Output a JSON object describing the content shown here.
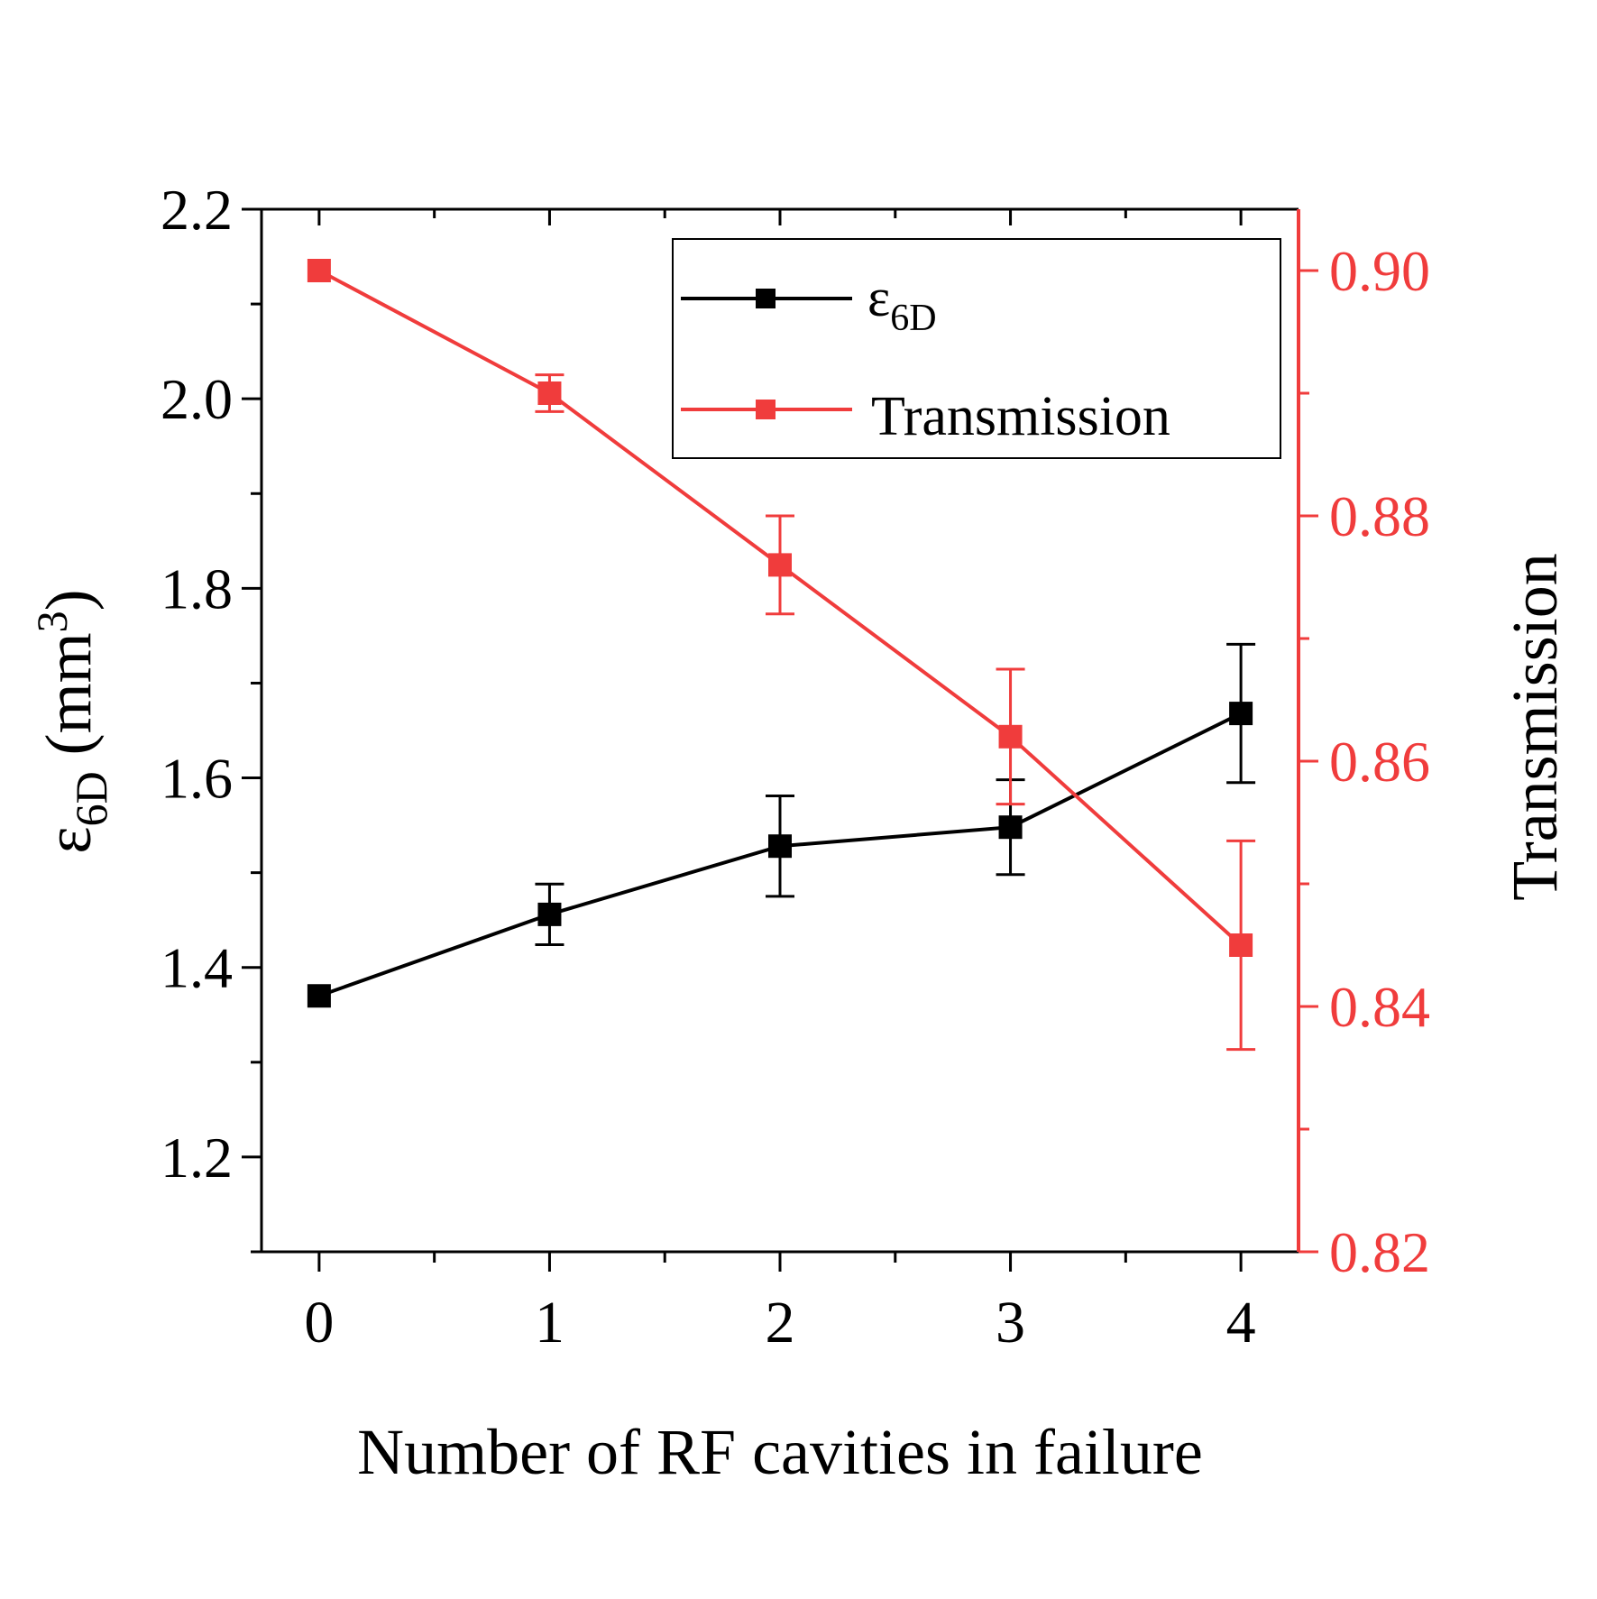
{
  "chart_data": {
    "type": "line",
    "title": "",
    "xlabel": "Number of RF cavities in failure",
    "x": [
      0,
      1,
      2,
      3,
      4
    ],
    "xticks": [
      "0",
      "1",
      "2",
      "3",
      "4"
    ],
    "xlim": [
      -0.25,
      4.25
    ],
    "y_left": {
      "label_symbol": "ε",
      "label_subscript": "6D",
      "label_unit_open": " (mm",
      "label_unit_sup": "3",
      "label_unit_close": ")",
      "lim": [
        1.1,
        2.2
      ],
      "major_ticks": [
        1.2,
        1.4,
        1.6,
        1.8,
        2.0,
        2.2
      ],
      "tick_labels": [
        "1.2",
        "1.4",
        "1.6",
        "1.8",
        "2.0",
        "2.2"
      ],
      "minor_ticks": [
        1.1,
        1.3,
        1.5,
        1.7,
        1.9,
        2.1
      ],
      "color": "#000000"
    },
    "y_right": {
      "label": "Transmission",
      "lim": [
        0.82,
        0.905
      ],
      "major_ticks": [
        0.82,
        0.84,
        0.86,
        0.88,
        0.9
      ],
      "tick_labels": [
        "0.82",
        "0.84",
        "0.86",
        "0.88",
        "0.90"
      ],
      "minor_ticks": [
        0.83,
        0.85,
        0.87,
        0.89
      ],
      "color": "#f03c3c"
    },
    "series": [
      {
        "name_symbol": "ε",
        "name_subscript": "6D",
        "axis": "left",
        "color": "#000000",
        "values": [
          1.37,
          1.456,
          1.528,
          1.548,
          1.668
        ],
        "errors": [
          0.0,
          0.032,
          0.053,
          0.05,
          0.073
        ]
      },
      {
        "name": "Transmission",
        "axis": "right",
        "color": "#f03c3c",
        "values": [
          0.9,
          0.89,
          0.876,
          0.862,
          0.845
        ],
        "errors": [
          0.0,
          0.0015,
          0.004,
          0.0055,
          0.0085
        ]
      }
    ],
    "legend": {
      "position": "top-right"
    }
  }
}
